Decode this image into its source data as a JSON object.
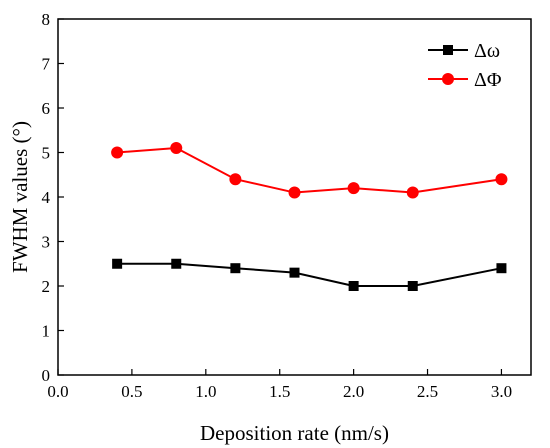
{
  "chart_data": {
    "type": "line",
    "xlabel": "Deposition rate (nm/s)",
    "ylabel": "FWHM values (°)",
    "xlim": [
      0.0,
      3.2
    ],
    "ylim": [
      0,
      8
    ],
    "x_ticks": [
      "0.0",
      "0.5",
      "1.0",
      "1.5",
      "2.0",
      "2.5",
      "3.0"
    ],
    "y_ticks": [
      "0",
      "1",
      "2",
      "3",
      "4",
      "5",
      "6",
      "7",
      "8"
    ],
    "x": [
      0.4,
      0.8,
      1.2,
      1.6,
      2.0,
      2.4,
      3.0
    ],
    "series": [
      {
        "name": "Δω",
        "values": [
          2.5,
          2.5,
          2.4,
          2.3,
          2.0,
          2.0,
          2.4
        ],
        "color": "#000000",
        "marker": "square"
      },
      {
        "name": "ΔΦ",
        "values": [
          5.0,
          5.1,
          4.4,
          4.1,
          4.2,
          4.1,
          4.4
        ],
        "color": "#ff0000",
        "marker": "circle"
      }
    ],
    "grid": false,
    "legend_position": "top-right"
  }
}
